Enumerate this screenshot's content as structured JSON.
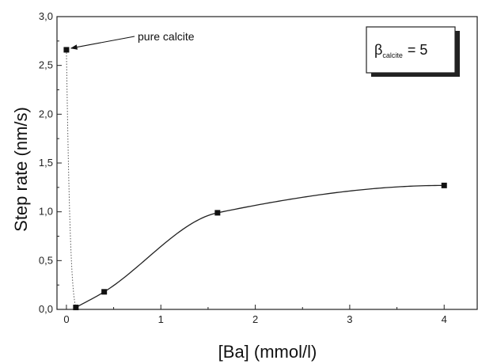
{
  "chart_data": {
    "type": "scatter",
    "xlabel": "[Ba] (mmol/l)",
    "ylabel": "Step rate (nm/s)",
    "xlim": [
      -0.1,
      4.35
    ],
    "ylim": [
      0,
      3.0
    ],
    "xticks": [
      "0",
      "1",
      "2",
      "3",
      "4"
    ],
    "yticks": [
      "0,0",
      "0,5",
      "1,0",
      "1,5",
      "2,0",
      "2,5",
      "3,0"
    ],
    "series": [
      {
        "points": [
          {
            "x": 0,
            "y": 2.66
          },
          {
            "x": 0.1,
            "y": 0.02
          },
          {
            "x": 0.4,
            "y": 0.18
          },
          {
            "x": 1.6,
            "y": 0.99
          },
          {
            "x": 4.0,
            "y": 1.27
          }
        ],
        "fit_line": "sigmoid"
      }
    ],
    "annotations": [
      {
        "text": "pure calcite",
        "points_to": {
          "x": 0,
          "y": 2.66
        }
      }
    ],
    "legend_box": {
      "symbol": "β",
      "subscript": "calcite",
      "text": "= 5",
      "placement": "top-right"
    },
    "grid": false
  }
}
